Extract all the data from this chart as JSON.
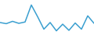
{
  "values": [
    13.5,
    12.8,
    14.2,
    13.0,
    13.8,
    24.0,
    17.0,
    9.5,
    13.5,
    8.5,
    12.5,
    8.8,
    13.2,
    9.5,
    17.5,
    13.0
  ],
  "line_color": "#3a9fd0",
  "line_width": 1.1,
  "background_color": "#ffffff",
  "ylim": [
    6,
    27
  ]
}
